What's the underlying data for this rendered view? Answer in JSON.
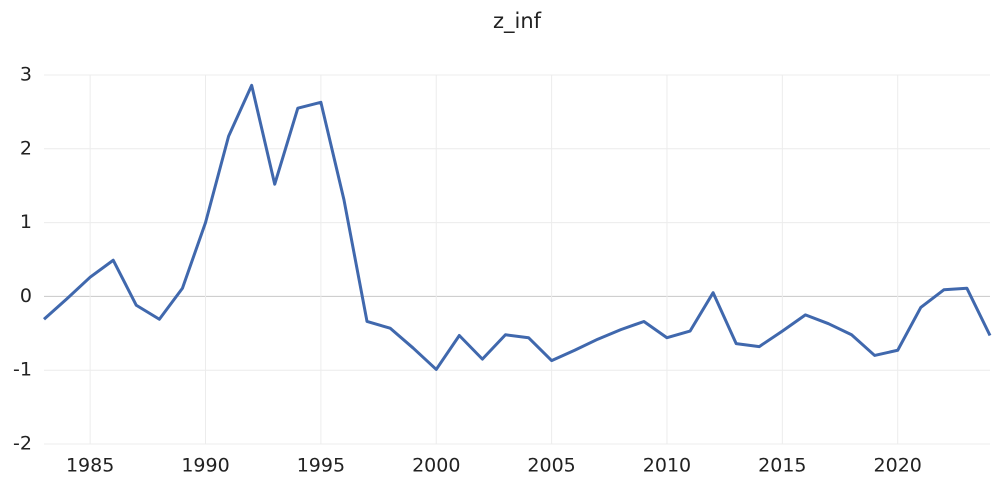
{
  "chart_data": {
    "type": "line",
    "title": "z_inf",
    "x": [
      1983,
      1984,
      1985,
      1986,
      1987,
      1988,
      1989,
      1990,
      1991,
      1992,
      1993,
      1994,
      1995,
      1996,
      1997,
      1998,
      1999,
      2000,
      2001,
      2002,
      2003,
      2004,
      2005,
      2006,
      2007,
      2008,
      2009,
      2010,
      2011,
      2012,
      2013,
      2014,
      2015,
      2016,
      2017,
      2018,
      2019,
      2020,
      2021,
      2022,
      2023,
      2024
    ],
    "series": [
      {
        "name": "z_inf",
        "color": "#4068ad",
        "values": [
          -0.31,
          -0.03,
          0.26,
          0.49,
          -0.12,
          -0.31,
          0.11,
          1.0,
          2.17,
          2.86,
          1.52,
          2.55,
          2.63,
          1.31,
          -0.34,
          -0.43,
          -0.7,
          -0.99,
          -0.53,
          -0.85,
          -0.52,
          -0.56,
          -0.87,
          -0.73,
          -0.58,
          -0.45,
          -0.34,
          -0.56,
          -0.47,
          0.05,
          -0.64,
          -0.68,
          -0.47,
          -0.25,
          -0.37,
          -0.52,
          -0.8,
          -0.73,
          -0.15,
          0.09,
          0.11,
          -0.53
        ]
      }
    ],
    "xlim": [
      1983,
      2024
    ],
    "xticks": [
      1985,
      1990,
      1995,
      2000,
      2005,
      2010,
      2015,
      2020
    ],
    "ylim": [
      -2,
      3
    ],
    "yticks": [
      -2,
      -1,
      0,
      1,
      2,
      3
    ],
    "grid": true
  }
}
